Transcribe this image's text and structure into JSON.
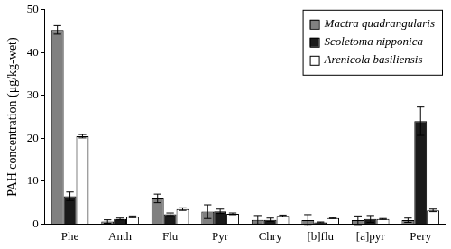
{
  "chart_data": {
    "type": "bar",
    "y_label": "PAH concentration (μg/kg-wet)",
    "categories": [
      "Phe",
      "Anth",
      "Flu",
      "Pyr",
      "Chry",
      "[b]flu",
      "[a]pyr",
      "Pery"
    ],
    "series": [
      {
        "name": "Mactra quadrangularis",
        "color": "#808080",
        "values": [
          45.3,
          0.6,
          6.0,
          2.9,
          1.0,
          0.9,
          0.9,
          0.9
        ],
        "errors": [
          1.0,
          0.4,
          1.0,
          1.6,
          1.0,
          1.3,
          1.0,
          0.5
        ]
      },
      {
        "name": "Scoletoma nipponica",
        "color": "#1a1a1a",
        "values": [
          6.5,
          1.2,
          2.3,
          3.0,
          1.0,
          0.4,
          1.2,
          24.0
        ],
        "errors": [
          1.0,
          0.2,
          0.3,
          0.5,
          0.4,
          0.1,
          0.8,
          3.3
        ]
      },
      {
        "name": "Arenicola basiliensis",
        "color": "#ffffff",
        "values": [
          20.5,
          1.7,
          3.5,
          2.4,
          1.9,
          1.4,
          1.2,
          3.2
        ],
        "errors": [
          0.4,
          0.2,
          0.3,
          0.2,
          0.2,
          0.1,
          0.1,
          0.3
        ]
      }
    ],
    "ylim": [
      0,
      50
    ],
    "yticks": [
      0,
      10,
      20,
      30,
      40,
      50
    ],
    "grid": false,
    "legend": "upper right"
  }
}
